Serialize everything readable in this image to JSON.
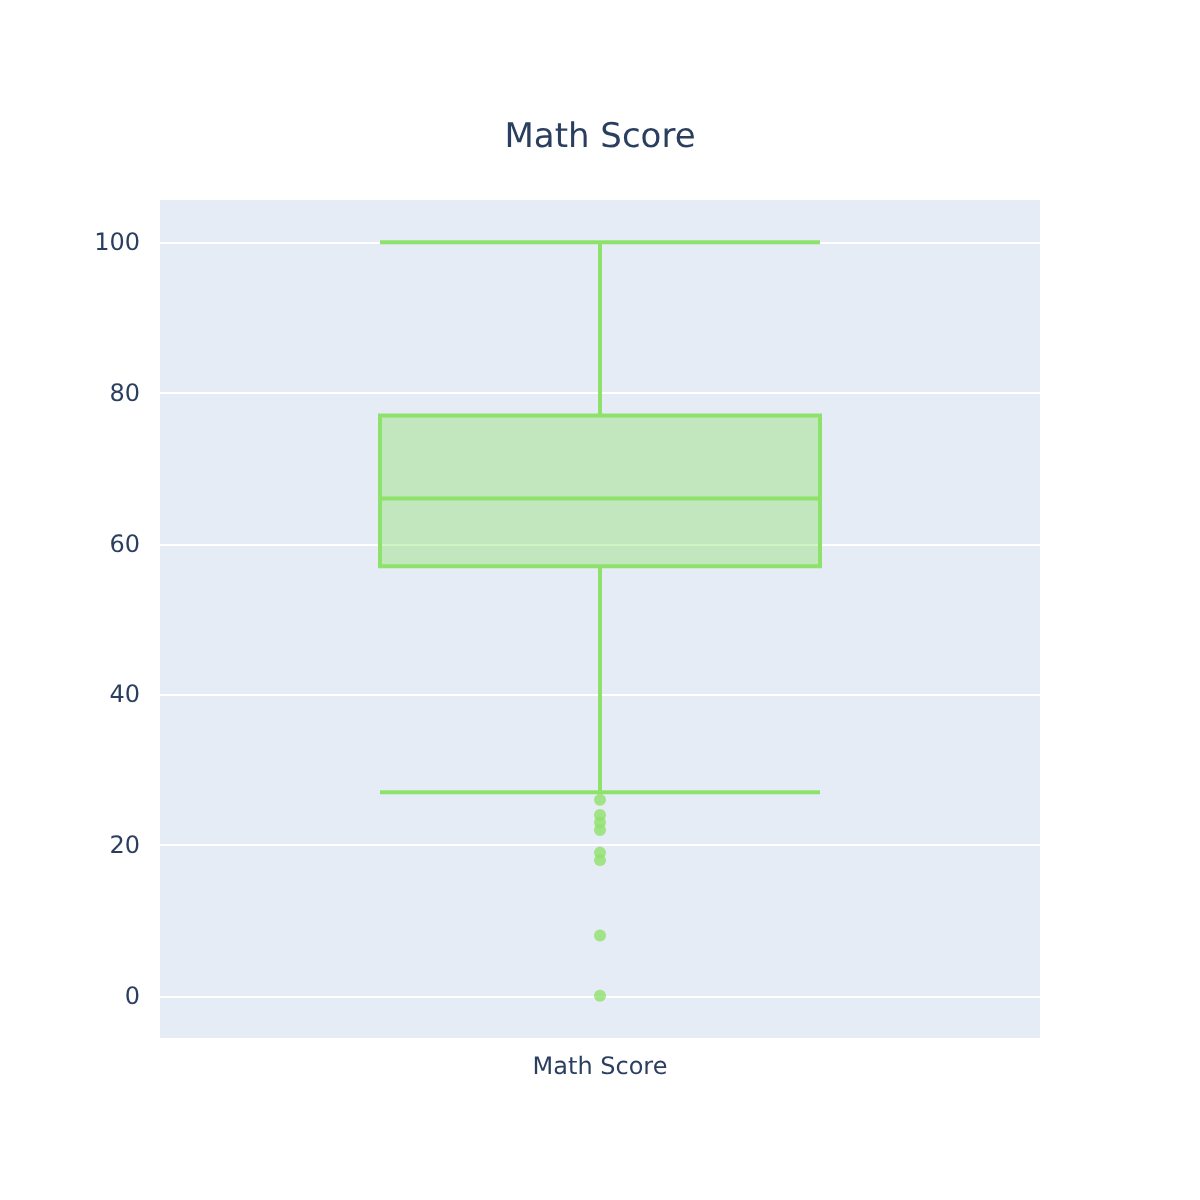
{
  "chart_data": {
    "type": "box",
    "title": "Math Score",
    "categories": [
      "Math Score"
    ],
    "series": [
      {
        "color": "#8ee26b",
        "boxes": [
          {
            "low": 27,
            "q1": 57,
            "median": 66,
            "q3": 77,
            "high": 100,
            "outliers": [
              26,
              24,
              23,
              22,
              19,
              18,
              8,
              0
            ]
          }
        ]
      }
    ],
    "ylim": [
      -5.6,
      105.6
    ],
    "yticks": [
      0,
      20,
      40,
      60,
      80,
      100
    ],
    "grid": "y"
  }
}
